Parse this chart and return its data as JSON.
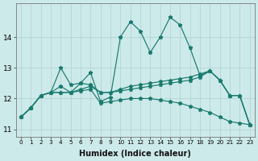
{
  "xlabel": "Humidex (Indice chaleur)",
  "x": [
    0,
    1,
    2,
    3,
    4,
    5,
    6,
    7,
    8,
    9,
    10,
    11,
    12,
    13,
    14,
    15,
    16,
    17,
    18,
    19,
    20,
    21,
    22,
    23
  ],
  "line1": [
    11.4,
    11.7,
    12.1,
    12.2,
    12.4,
    12.2,
    12.5,
    12.85,
    11.9,
    12.05,
    14.0,
    14.5,
    14.2,
    13.5,
    14.0,
    14.65,
    14.4,
    13.65,
    12.75,
    12.9,
    12.6,
    12.1,
    12.1,
    11.15
  ],
  "line2": [
    11.4,
    11.7,
    12.1,
    12.2,
    13.0,
    12.45,
    12.5,
    12.45,
    12.2,
    12.2,
    12.25,
    12.3,
    12.35,
    12.4,
    12.45,
    12.5,
    12.55,
    12.6,
    12.7,
    12.9,
    12.6,
    12.1,
    12.1,
    11.15
  ],
  "line3": [
    11.4,
    11.7,
    12.1,
    12.2,
    12.2,
    12.2,
    12.3,
    12.4,
    12.2,
    12.2,
    12.3,
    12.4,
    12.45,
    12.5,
    12.55,
    12.6,
    12.65,
    12.7,
    12.8,
    12.9,
    12.6,
    12.1,
    12.1,
    11.15
  ],
  "line4": [
    11.4,
    11.7,
    12.1,
    12.2,
    12.2,
    12.2,
    12.25,
    12.3,
    11.85,
    11.9,
    11.95,
    12.0,
    12.0,
    12.0,
    11.95,
    11.9,
    11.85,
    11.75,
    11.65,
    11.55,
    11.4,
    11.25,
    11.2,
    11.15
  ],
  "color": "#1a7a6e",
  "bg_color": "#cdeaea",
  "grid_color": "#afd0d0",
  "ylim": [
    10.75,
    15.1
  ],
  "yticks": [
    11,
    12,
    13,
    14
  ],
  "xticks": [
    0,
    1,
    2,
    3,
    4,
    5,
    6,
    7,
    8,
    9,
    10,
    11,
    12,
    13,
    14,
    15,
    16,
    17,
    18,
    19,
    20,
    21,
    22,
    23
  ]
}
